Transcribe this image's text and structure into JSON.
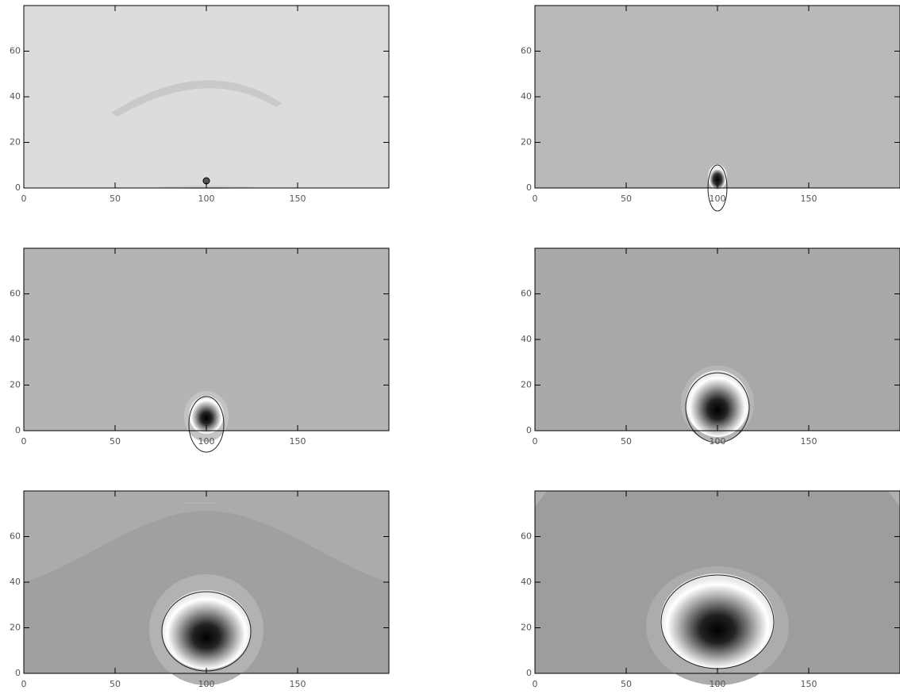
{
  "chart_data": [
    {
      "type": "contour",
      "xlim": [
        0,
        200
      ],
      "ylim": [
        0,
        80
      ],
      "xticks": [
        0,
        50,
        100,
        150
      ],
      "yticks": [
        0,
        20,
        40,
        60
      ],
      "background": "#dcdcdc"
    },
    {
      "type": "contour",
      "xlim": [
        0,
        200
      ],
      "ylim": [
        0,
        80
      ],
      "xticks": [
        0,
        50,
        100,
        150
      ],
      "yticks": [
        0,
        20,
        40,
        60
      ],
      "background": "#b9b9b9"
    },
    {
      "type": "contour",
      "xlim": [
        0,
        200
      ],
      "ylim": [
        0,
        80
      ],
      "xticks": [
        0,
        50,
        100,
        150
      ],
      "yticks": [
        0,
        20,
        40,
        60
      ],
      "background": "#b4b4b4"
    },
    {
      "type": "contour",
      "xlim": [
        0,
        200
      ],
      "ylim": [
        0,
        80
      ],
      "xticks": [
        0,
        50,
        100,
        150
      ],
      "yticks": [
        0,
        20,
        40,
        60
      ],
      "background": "#a8a8a8"
    },
    {
      "type": "contour",
      "xlim": [
        0,
        200
      ],
      "ylim": [
        0,
        80
      ],
      "xticks": [
        0,
        50,
        100,
        150
      ],
      "yticks": [
        0,
        20,
        40,
        60
      ],
      "background": "#ababab"
    },
    {
      "type": "contour",
      "xlim": [
        0,
        200
      ],
      "ylim": [
        0,
        80
      ],
      "xticks": [
        0,
        50,
        100,
        150
      ],
      "yticks": [
        0,
        20,
        40,
        60
      ],
      "background": "#9d9d9d"
    }
  ]
}
